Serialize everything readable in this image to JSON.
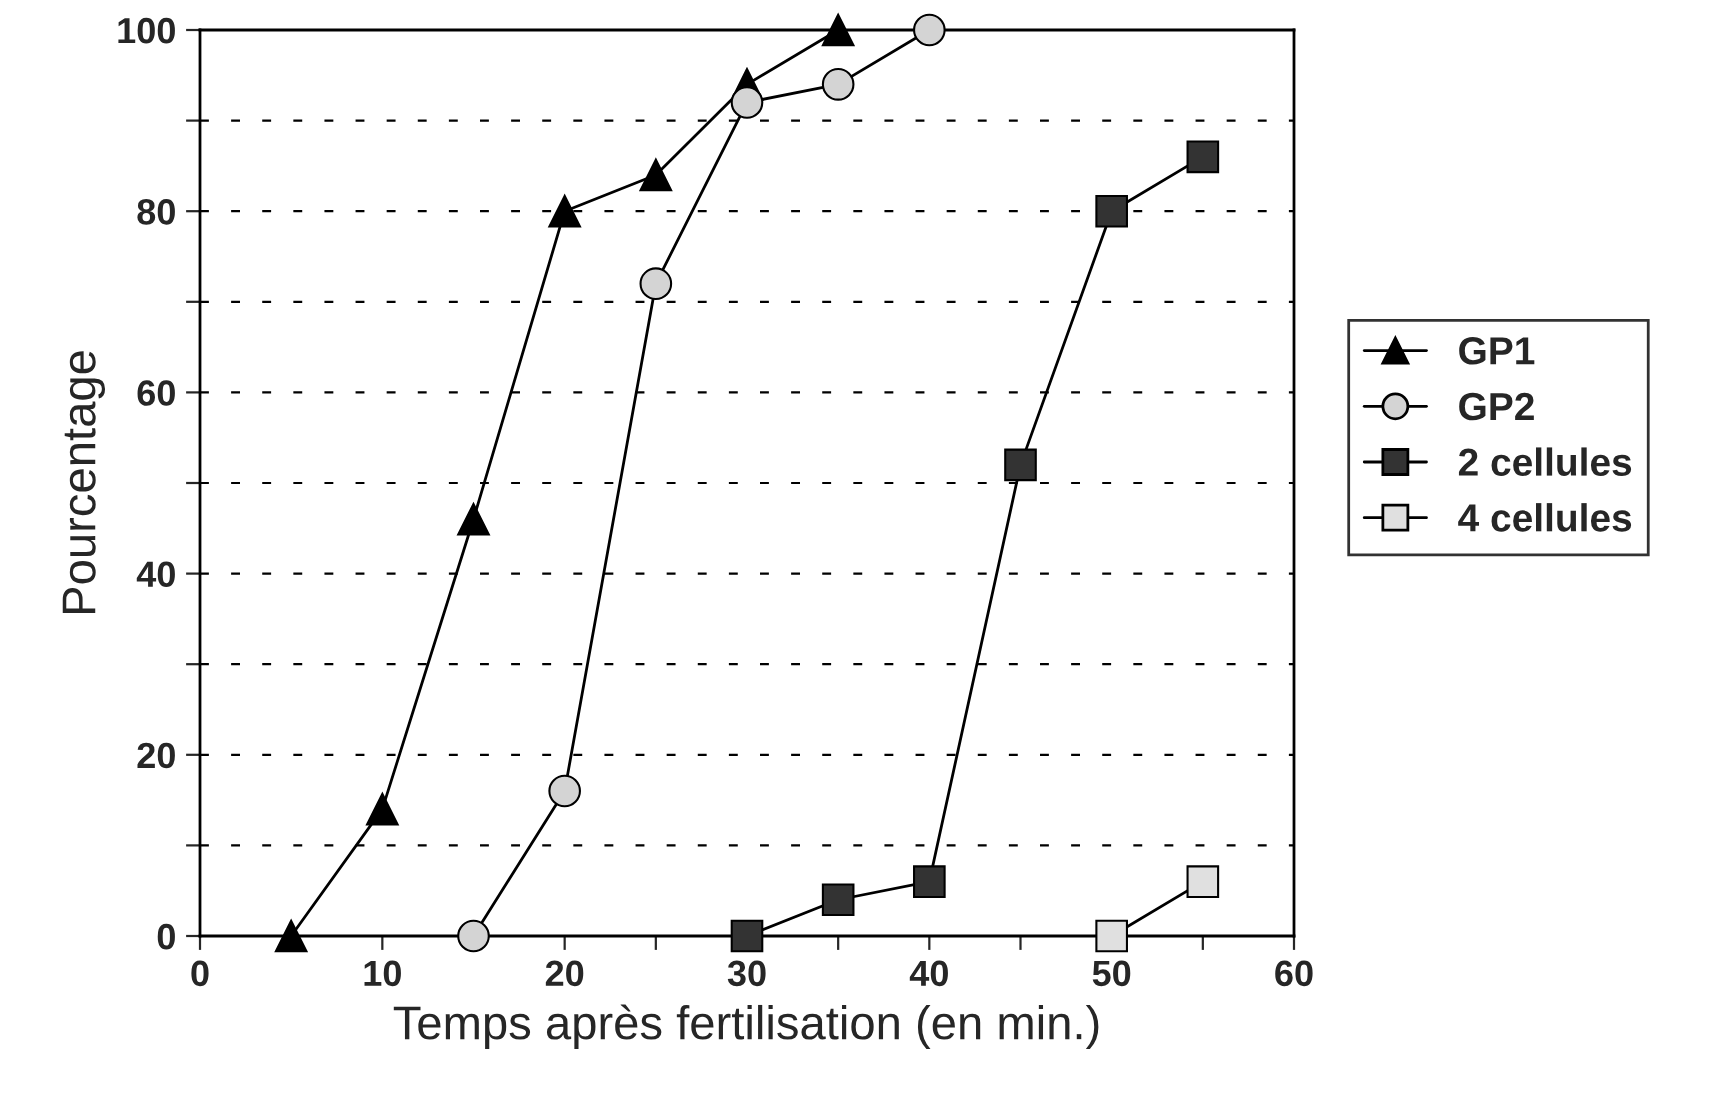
{
  "chart_data": {
    "type": "line",
    "xlabel": "Temps après fertilisation (en min.)",
    "ylabel": "Pourcentage",
    "xlim": [
      0,
      60
    ],
    "ylim": [
      0,
      100
    ],
    "xticks": [
      0,
      {
        "value": 5,
        "label": null
      },
      10,
      {
        "value": 15,
        "label": null
      },
      20,
      {
        "value": 25,
        "label": null
      },
      30,
      {
        "value": 35,
        "label": null
      },
      40,
      {
        "value": 45,
        "label": null
      },
      50,
      {
        "value": 55,
        "label": null
      },
      60
    ],
    "yticks": [
      0,
      {
        "value": 10,
        "label": null
      },
      20,
      {
        "value": 30,
        "label": null
      },
      40,
      {
        "value": 50,
        "label": null
      },
      60,
      {
        "value": 70,
        "label": null
      },
      80,
      {
        "value": 90,
        "label": null
      },
      100
    ],
    "grid": "y",
    "legend": "right",
    "line_style": "solid",
    "series": [
      {
        "name": "GP1",
        "color": "#000000",
        "marker": "triangle",
        "x": [
          5,
          10,
          15,
          20,
          25,
          30,
          35
        ],
        "values": [
          0,
          14,
          46,
          80,
          84,
          94,
          100
        ]
      },
      {
        "name": "GP2",
        "color": "#d4d4d4",
        "marker": "circle",
        "x": [
          15,
          20,
          25,
          30,
          35,
          40
        ],
        "values": [
          0,
          16,
          72,
          92,
          94,
          100
        ]
      },
      {
        "name": "2 cellules",
        "color": "#333333",
        "marker": "square",
        "x": [
          30,
          35,
          40,
          45,
          50,
          55
        ],
        "values": [
          0,
          4,
          6,
          52,
          80,
          86
        ]
      },
      {
        "name": "4 cellules",
        "color": "#e0e0e0",
        "marker": "square",
        "x": [
          50,
          55
        ],
        "values": [
          0,
          6
        ]
      }
    ]
  }
}
